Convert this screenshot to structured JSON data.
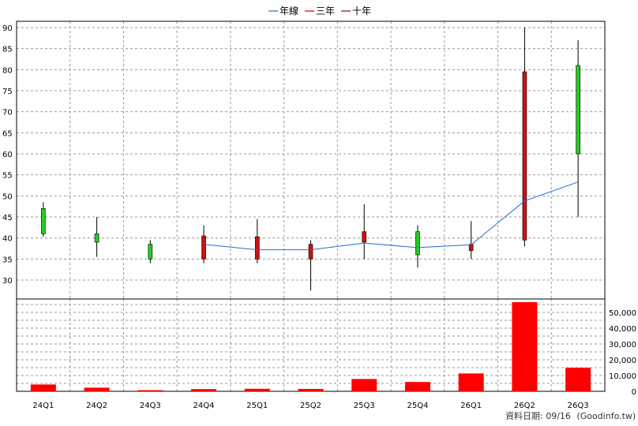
{
  "legend": [
    {
      "label": "年線",
      "color": "#1f6fd1"
    },
    {
      "label": "三年",
      "color": "#cc0000"
    },
    {
      "label": "十年",
      "color": "#800040"
    }
  ],
  "footer": {
    "date_label": "資料日期: 09/16",
    "source": "(Goodinfo.tw)"
  },
  "colors": {
    "up": "#22cc22",
    "down": "#cc1111",
    "volume": "#ff0000",
    "grid": "#9a9a9a",
    "line": "#1f6fd1"
  },
  "chart_data": [
    {
      "type": "candlestick",
      "categories": [
        "24Q1",
        "24Q2",
        "24Q3",
        "24Q4",
        "25Q1",
        "25Q2",
        "25Q3",
        "25Q4",
        "26Q1",
        "26Q2",
        "26Q3"
      ],
      "ylim": [
        25.5,
        91.5
      ],
      "yticks": [
        30,
        35,
        40,
        45,
        50,
        55,
        60,
        65,
        70,
        75,
        80,
        85,
        90
      ],
      "grid": true,
      "candles": [
        {
          "open": 41,
          "close": 47,
          "high": 48.5,
          "low": 40.3
        },
        {
          "open": 39,
          "close": 41,
          "high": 45,
          "low": 35.5
        },
        {
          "open": 35,
          "close": 38.5,
          "high": 39.5,
          "low": 34
        },
        {
          "open": 40.5,
          "close": 35,
          "high": 43,
          "low": 34
        },
        {
          "open": 40.3,
          "close": 35,
          "high": 44.5,
          "low": 34
        },
        {
          "open": 38.5,
          "close": 35,
          "high": 39.5,
          "low": 27.5
        },
        {
          "open": 41.5,
          "close": 39,
          "high": 48,
          "low": 35
        },
        {
          "open": 36,
          "close": 41.5,
          "high": 43,
          "low": 33
        },
        {
          "open": 38.5,
          "close": 37,
          "high": 44,
          "low": 35
        },
        {
          "open": 79.5,
          "close": 39.5,
          "high": 90,
          "low": 38
        },
        {
          "open": 60,
          "close": 81,
          "high": 87,
          "low": 45
        }
      ],
      "annual_line": [
        null,
        null,
        null,
        38.5,
        37.2,
        37.2,
        38.8,
        37.7,
        38.4,
        48.8,
        53.3
      ]
    },
    {
      "type": "bar",
      "categories": [
        "24Q1",
        "24Q2",
        "24Q3",
        "24Q4",
        "25Q1",
        "25Q2",
        "25Q3",
        "25Q4",
        "26Q1",
        "26Q2",
        "26Q3"
      ],
      "values": [
        4300,
        2300,
        700,
        1400,
        1600,
        1500,
        7800,
        5900,
        11300,
        56500,
        14900
      ],
      "ylim": [
        0,
        58500
      ],
      "yticks": [
        0,
        10000,
        20000,
        30000,
        40000,
        50000
      ],
      "ytick_labels": [
        "0",
        "10,000",
        "20,000",
        "30,000",
        "40,000",
        "50,000"
      ],
      "grid": true
    }
  ]
}
